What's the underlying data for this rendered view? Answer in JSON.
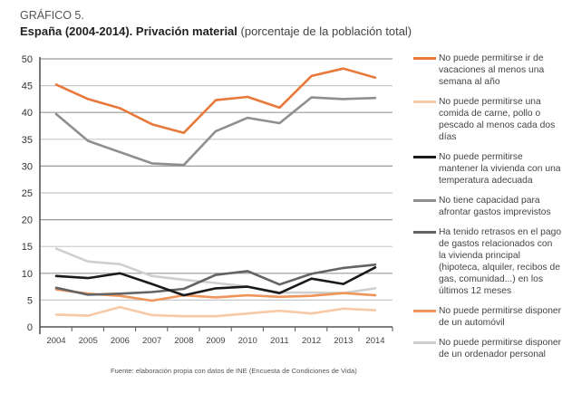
{
  "kicker": "GRÁFICO 5.",
  "title_bold": "España (2004-2014). Privación material",
  "title_rest": " (porcentaje de la población total)",
  "source": "Fuente: elaboración propia con datos de INE (Encuesta de Condiciones de Vida)",
  "chart_data": {
    "type": "line",
    "title": "España (2004-2014). Privación material (porcentaje de la población total)",
    "xlabel": "",
    "ylabel": "",
    "ylim": [
      0,
      50
    ],
    "yticks": [
      0,
      5,
      10,
      15,
      20,
      25,
      30,
      35,
      40,
      45,
      50
    ],
    "grid": true,
    "legend_position": "right",
    "x": [
      "2004",
      "2005",
      "2006",
      "2007",
      "2008",
      "2009",
      "2010",
      "2011",
      "2012",
      "2013",
      "2014"
    ],
    "series": [
      {
        "name": "No puede permitirse ir de vacaciones al menos una semana al año",
        "color": "#E8793A",
        "values": [
          45.2,
          42.5,
          40.8,
          37.8,
          36.2,
          42.3,
          42.9,
          40.9,
          46.8,
          48.2,
          46.5
        ]
      },
      {
        "name": "No puede permitirse una comida de carne, pollo o pescado al menos cada dos días",
        "color": "#F7C9A6",
        "values": [
          2.3,
          2.1,
          3.7,
          2.2,
          2.0,
          2.0,
          2.5,
          3.0,
          2.5,
          3.4,
          3.1
        ]
      },
      {
        "name": "No puede permitirse mantener la vivienda con una temperatura adecuada",
        "color": "#1A1A1A",
        "values": [
          9.5,
          9.1,
          10.0,
          8.0,
          5.9,
          7.2,
          7.5,
          6.3,
          9.0,
          8.0,
          11.1
        ]
      },
      {
        "name": "No tiene capacidad para afrontar gastos imprevistos",
        "color": "#8F8F8F",
        "values": [
          39.7,
          34.7,
          32.6,
          30.5,
          30.2,
          36.5,
          39.0,
          38.0,
          42.8,
          42.5,
          42.7
        ]
      },
      {
        "name": "Ha tenido retrasos en el pago de gastos relacionados con la vivienda principal (hipoteca, alquiler, recibos de gas, comunidad...) en los últimos 12 meses",
        "color": "#636363",
        "values": [
          7.3,
          6.0,
          6.2,
          6.5,
          7.1,
          9.7,
          10.4,
          7.9,
          9.9,
          11.0,
          11.6
        ]
      },
      {
        "name": "No puede permitirse disponer de un automóvil",
        "color": "#F0955A",
        "values": [
          7.0,
          6.2,
          5.8,
          4.9,
          5.9,
          5.5,
          5.9,
          5.6,
          5.8,
          6.3,
          5.9
        ]
      },
      {
        "name": "No puede permitirse disponer de un ordenador personal",
        "color": "#CFCFCF",
        "values": [
          14.6,
          12.2,
          11.7,
          9.5,
          8.8,
          8.2,
          7.5,
          6.4,
          6.4,
          6.3,
          7.2
        ]
      }
    ]
  }
}
